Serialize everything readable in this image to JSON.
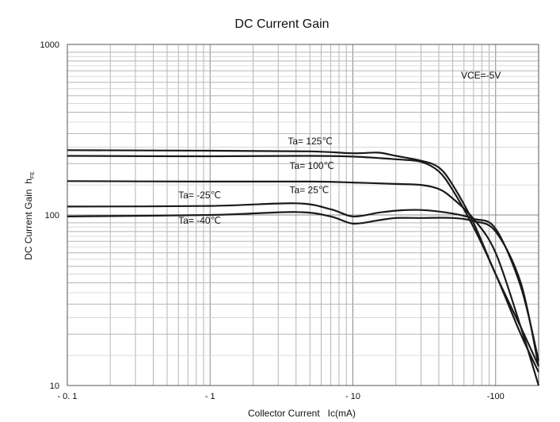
{
  "chart_data": {
    "type": "line",
    "title": "DC Current Gain",
    "xlabel": "Collector Current   Ic(mA)",
    "ylabel": "DC Current Gain  h",
    "ylabel_sub": "FE",
    "x_scale": "log",
    "y_scale": "log",
    "xlim": [
      -0.1,
      -200
    ],
    "ylim": [
      10,
      1000
    ],
    "x_ticks": [
      {
        "value": -0.1,
        "label": "- 0. 1"
      },
      {
        "value": -1,
        "label": "- 1"
      },
      {
        "value": -10,
        "label": "- 10"
      },
      {
        "value": -100,
        "label": "-100"
      }
    ],
    "y_ticks": [
      {
        "value": 10,
        "label": "10"
      },
      {
        "value": 100,
        "label": "100"
      },
      {
        "value": 1000,
        "label": "1000"
      }
    ],
    "grid": true,
    "annotation": "VCE=-5V",
    "series": [
      {
        "name": "Ta= 125℃",
        "x": [
          -0.1,
          -1,
          -5,
          -10,
          -15,
          -20,
          -30,
          -40,
          -50,
          -70,
          -100,
          -150,
          -200
        ],
        "y": [
          240,
          238,
          236,
          230,
          232,
          222,
          208,
          190,
          150,
          90,
          45,
          22,
          13
        ]
      },
      {
        "name": "Ta= 100℃",
        "x": [
          -0.1,
          -1,
          -5,
          -10,
          -20,
          -30,
          -40,
          -50,
          -70,
          -100,
          -150,
          -200
        ],
        "y": [
          222,
          221,
          222,
          220,
          212,
          205,
          180,
          140,
          85,
          45,
          20,
          12
        ]
      },
      {
        "name": "Ta= 25℃",
        "x": [
          -0.1,
          -1,
          -5,
          -10,
          -20,
          -30,
          -40,
          -50,
          -70,
          -100,
          -150,
          -200
        ],
        "y": [
          158,
          157,
          157,
          155,
          152,
          150,
          142,
          125,
          95,
          60,
          22,
          10
        ]
      },
      {
        "name": "Ta= -25℃",
        "x": [
          -0.1,
          -1,
          -4,
          -7,
          -10,
          -15,
          -20,
          -30,
          -50,
          -70,
          -100,
          -150,
          -200
        ],
        "y": [
          112,
          113,
          117,
          108,
          98,
          103,
          106,
          107,
          102,
          95,
          83,
          38,
          14
        ]
      },
      {
        "name": "Ta= -40℃",
        "x": [
          -0.1,
          -1,
          -4,
          -7,
          -10,
          -15,
          -20,
          -30,
          -50,
          -70,
          -100,
          -150,
          -200
        ],
        "y": [
          98,
          100,
          104,
          98,
          89,
          93,
          96,
          96,
          96,
          92,
          80,
          40,
          13
        ]
      }
    ],
    "series_labels": [
      {
        "text": "Ta= 125℃",
        "x": -3.5,
        "y": 260
      },
      {
        "text": "Ta= 100℃",
        "x": -3.6,
        "y": 186
      },
      {
        "text": "Ta= 25℃",
        "x": -3.6,
        "y": 134
      },
      {
        "text": "Ta= -25℃",
        "x": -0.6,
        "y": 125
      },
      {
        "text": "Ta= -40℃",
        "x": -0.6,
        "y": 89
      }
    ]
  }
}
